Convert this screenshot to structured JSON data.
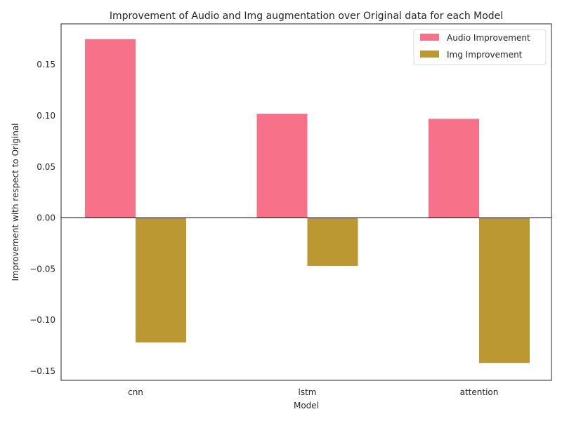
{
  "chart_data": {
    "type": "bar",
    "title": "Improvement of Audio and Img augmentation over Original data for each Model",
    "xlabel": "Model",
    "ylabel": "Improvement with respect to Original",
    "categories": [
      "cnn",
      "lstm",
      "attention"
    ],
    "series": [
      {
        "name": "Audio Improvement",
        "color": "#f77189",
        "values": [
          0.175,
          0.102,
          0.097
        ]
      },
      {
        "name": "Img Improvement",
        "color": "#bb9832",
        "values": [
          -0.122,
          -0.047,
          -0.142
        ]
      }
    ],
    "ylim": [
      -0.159,
      0.19
    ],
    "yticks": [
      -0.15,
      -0.1,
      -0.05,
      0.0,
      0.05,
      0.1,
      0.15
    ],
    "ytick_labels": [
      "−0.15",
      "−0.10",
      "−0.05",
      "0.00",
      "0.05",
      "0.10",
      "0.15"
    ],
    "zero_line": true,
    "grid": false,
    "legend_position": "top-right"
  }
}
